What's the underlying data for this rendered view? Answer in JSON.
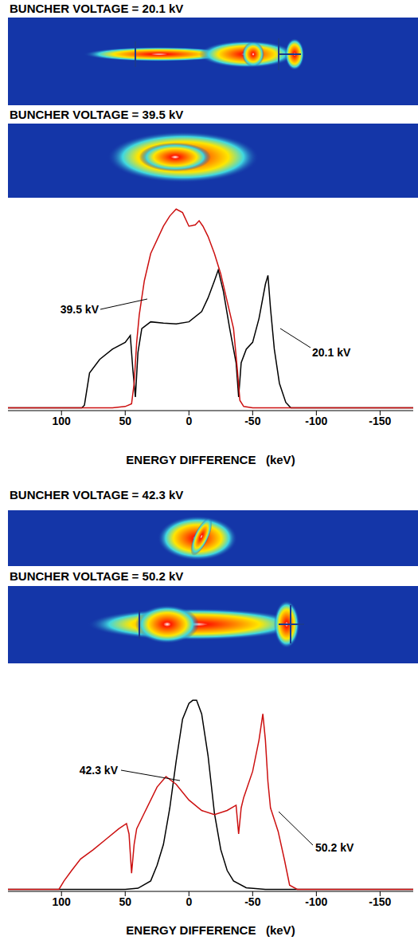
{
  "image_titles": [
    [
      "BUNCHER VOLTAGE = 20.1 kV",
      "BUNCHER VOLTAGE = 39.5 kV"
    ],
    [
      "BUNCHER VOLTAGE = 42.3 kV",
      "BUNCHER VOLTAGE = 50.2 kV"
    ]
  ],
  "chart_data": [
    {
      "type": "line",
      "x_label": "ENERGY DIFFERENCE   (keV)",
      "xlim": [
        142,
        -176
      ],
      "xticks": [
        100,
        50,
        0,
        -50,
        -100,
        -150
      ],
      "ylim": [
        0,
        3
      ],
      "yticks": [
        0.9,
        1.9,
        2.9
      ],
      "tick_labels": "x",
      "series": [
        {
          "name": "20.1 kV",
          "color": "#000000",
          "x": [
            142,
            100,
            84,
            82,
            78,
            70,
            60,
            50,
            46,
            44,
            42,
            40,
            37,
            30,
            20,
            10,
            0,
            -10,
            -15,
            -20,
            -23,
            -27,
            -32,
            -37,
            -39,
            -41,
            -45,
            -50,
            -55,
            -60,
            -62,
            -64,
            -67,
            -71,
            -76,
            -80,
            -100,
            -176
          ],
          "values": [
            0.04,
            0.04,
            0.04,
            0.08,
            0.55,
            0.75,
            0.9,
            1.0,
            1.1,
            0.6,
            0.2,
            0.85,
            1.2,
            1.3,
            1.28,
            1.27,
            1.3,
            1.45,
            1.65,
            1.9,
            2.06,
            1.75,
            1.2,
            0.7,
            0.2,
            0.7,
            0.9,
            1.0,
            1.35,
            1.85,
            1.98,
            1.5,
            0.9,
            0.4,
            0.12,
            0.04,
            0.04,
            0.04
          ]
        },
        {
          "name": "39.5 kV",
          "color": "#cc1010",
          "x": [
            142,
            60,
            50,
            45,
            43,
            41,
            39,
            35,
            30,
            20,
            15,
            10,
            5,
            0,
            -5,
            -8,
            -11,
            -15,
            -20,
            -25,
            -30,
            -35,
            -38,
            -40,
            -43,
            -50,
            -80,
            -176
          ],
          "values": [
            0.04,
            0.04,
            0.06,
            0.1,
            0.4,
            1.0,
            1.4,
            1.9,
            2.3,
            2.7,
            2.85,
            2.95,
            2.9,
            2.7,
            2.72,
            2.78,
            2.7,
            2.55,
            2.3,
            2.0,
            1.6,
            1.2,
            0.6,
            0.15,
            0.06,
            0.04,
            0.04,
            0.04
          ]
        }
      ]
    },
    {
      "type": "line",
      "x_label": "ENERGY DIFFERENCE   (keV)",
      "xlim": [
        142,
        -176
      ],
      "xticks": [
        100,
        50,
        0,
        -50,
        -100,
        -150
      ],
      "ylim": [
        0,
        4.2
      ],
      "yticks": [
        0.9,
        1.9,
        2.9
      ],
      "tick_labels": "x",
      "series": [
        {
          "name": "42.3 kV",
          "color": "#000000",
          "x": [
            142,
            50,
            40,
            30,
            25,
            20,
            15,
            10,
            5,
            0,
            -3,
            -6,
            -10,
            -15,
            -20,
            -25,
            -30,
            -35,
            -45,
            -60,
            -176
          ],
          "values": [
            0.04,
            0.04,
            0.06,
            0.2,
            0.5,
            0.9,
            1.6,
            2.5,
            3.3,
            3.6,
            3.66,
            3.66,
            3.4,
            2.6,
            1.5,
            0.8,
            0.4,
            0.2,
            0.07,
            0.04,
            0.04
          ]
        },
        {
          "name": "50.2 kV",
          "color": "#cc1010",
          "x": [
            142,
            102,
            98,
            92,
            85,
            75,
            65,
            55,
            49,
            47,
            45,
            43,
            41,
            35,
            25,
            18,
            10,
            0,
            -10,
            -20,
            -30,
            -37,
            -39,
            -41,
            -43,
            -50,
            -55,
            -58,
            -60,
            -62,
            -64,
            -70,
            -75,
            -79,
            -85,
            -176
          ],
          "values": [
            0.04,
            0.04,
            0.2,
            0.4,
            0.62,
            0.8,
            1.0,
            1.2,
            1.3,
            1.1,
            0.35,
            0.9,
            1.2,
            1.5,
            2.0,
            2.2,
            2.05,
            1.75,
            1.55,
            1.47,
            1.55,
            1.65,
            1.1,
            1.6,
            1.8,
            2.3,
            2.9,
            3.4,
            2.9,
            2.1,
            1.6,
            1.15,
            0.6,
            0.12,
            0.04,
            0.04
          ]
        }
      ]
    }
  ]
}
